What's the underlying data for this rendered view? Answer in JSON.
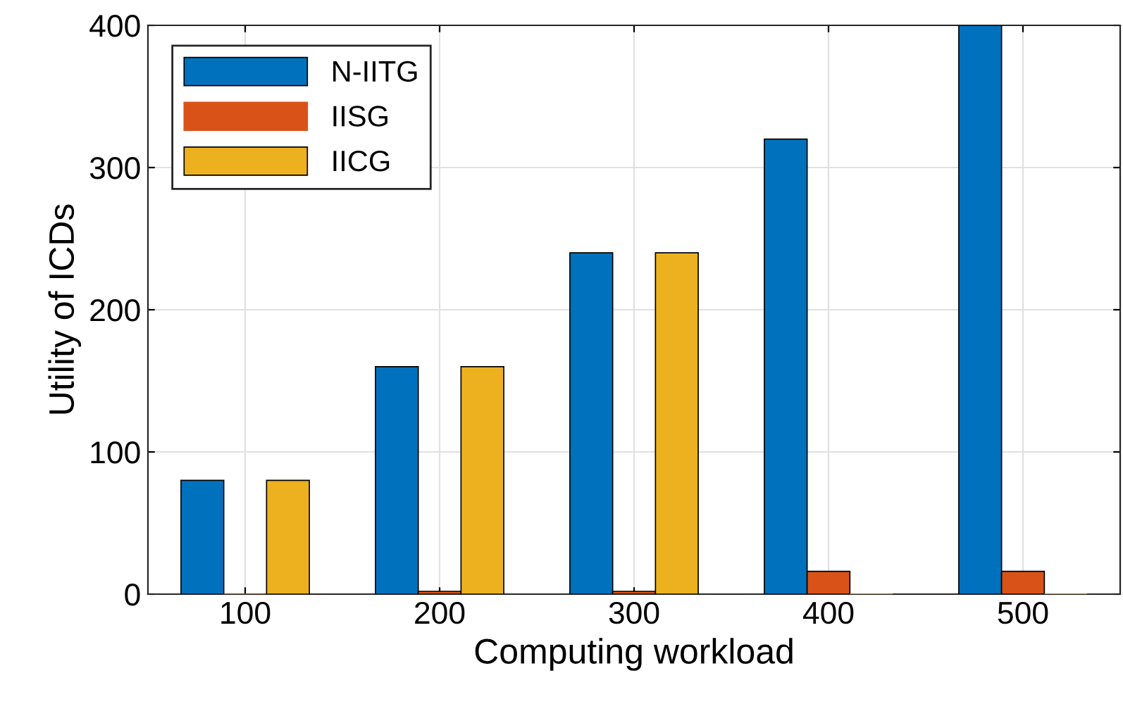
{
  "chart_data": {
    "type": "bar",
    "xlabel": "Computing workload",
    "ylabel": "Utility of ICDs",
    "categories": [
      "100",
      "200",
      "300",
      "400",
      "500"
    ],
    "series": [
      {
        "name": "N-IITG",
        "color": "#0072bd",
        "values": [
          80,
          160,
          240,
          320,
          400
        ]
      },
      {
        "name": "IISG",
        "color": "#d95319",
        "values": [
          0,
          2,
          2,
          16,
          16
        ]
      },
      {
        "name": "IICG",
        "color": "#edb120",
        "values": [
          80,
          160,
          240,
          0,
          0
        ]
      }
    ],
    "ylim": [
      0,
      400
    ],
    "yticks": [
      0,
      100,
      200,
      300,
      400
    ],
    "grid": true,
    "legend": "top left"
  }
}
